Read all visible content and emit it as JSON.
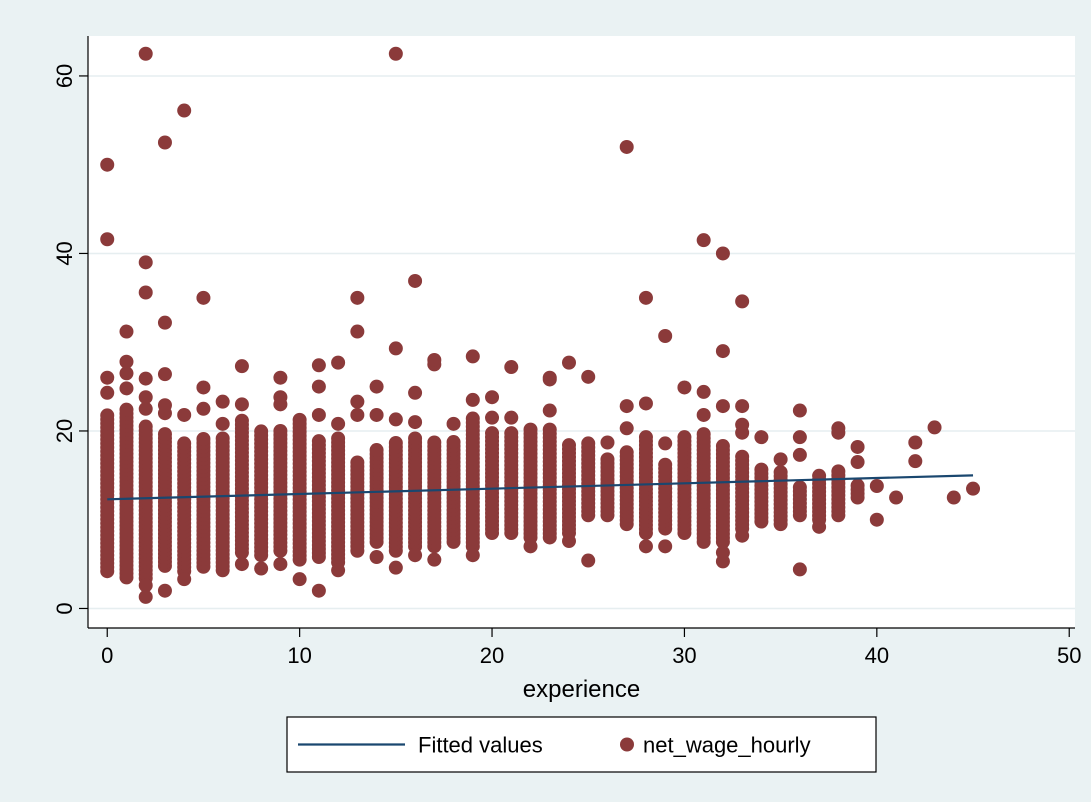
{
  "chart_data": {
    "type": "scatter",
    "xlabel": "experience",
    "ylabel": "",
    "xlim": [
      -1,
      50.3
    ],
    "ylim": [
      -2.2,
      64.5
    ],
    "xticks": [
      0,
      10,
      20,
      30,
      40,
      50
    ],
    "yticks": [
      0,
      20,
      40,
      60
    ],
    "grid": "horizontal",
    "legend_position": "bottom",
    "colors": {
      "background": "#eaf2f3",
      "plot_area": "#ffffff",
      "grid": "#e6eef0",
      "points": "#8b3a3a",
      "line": "#1a476f"
    },
    "series": [
      {
        "name": "Fitted values",
        "kind": "line",
        "x": [
          0,
          45
        ],
        "y": [
          12.3,
          15.0
        ]
      },
      {
        "name": "net_wage_hourly",
        "kind": "scatter",
        "columns": [
          {
            "x": 0,
            "lo": 4.2,
            "hi": 22.0,
            "extra": [
              24.3,
              26.0,
              41.6,
              50.0
            ]
          },
          {
            "x": 1,
            "lo": 3.5,
            "hi": 22.5,
            "extra": [
              24.8,
              26.5,
              27.8,
              31.2
            ]
          },
          {
            "x": 2,
            "lo": 3.4,
            "hi": 20.5,
            "extra": [
              1.3,
              2.6,
              22.5,
              23.8,
              25.9,
              35.6,
              39.0,
              62.5
            ]
          },
          {
            "x": 3,
            "lo": 4.8,
            "hi": 19.8,
            "extra": [
              2.0,
              22.0,
              22.9,
              26.4,
              32.2,
              52.5
            ]
          },
          {
            "x": 4,
            "lo": 4.2,
            "hi": 18.8,
            "extra": [
              3.3,
              21.8,
              56.1
            ]
          },
          {
            "x": 5,
            "lo": 4.7,
            "hi": 19.3,
            "extra": [
              22.5,
              24.9,
              35.0
            ]
          },
          {
            "x": 6,
            "lo": 4.3,
            "hi": 19.5,
            "extra": [
              20.8,
              23.3
            ]
          },
          {
            "x": 7,
            "lo": 6.3,
            "hi": 21.5,
            "extra": [
              5.0,
              23.0,
              27.3
            ]
          },
          {
            "x": 8,
            "lo": 6.0,
            "hi": 20.0,
            "extra": [
              4.5
            ]
          },
          {
            "x": 9,
            "lo": 6.5,
            "hi": 20.3,
            "extra": [
              5.0,
              23.0,
              23.8,
              26.0
            ]
          },
          {
            "x": 10,
            "lo": 5.5,
            "hi": 21.5,
            "extra": [
              3.3
            ]
          },
          {
            "x": 11,
            "lo": 5.8,
            "hi": 19.0,
            "extra": [
              2.0,
              21.8,
              25.0,
              27.4
            ]
          },
          {
            "x": 12,
            "lo": 5.2,
            "hi": 19.5,
            "extra": [
              4.3,
              20.8,
              27.7
            ]
          },
          {
            "x": 13,
            "lo": 7.0,
            "hi": 16.5,
            "extra": [
              6.5,
              21.8,
              23.3,
              31.2,
              35.0
            ]
          },
          {
            "x": 14,
            "lo": 7.5,
            "hi": 18.0,
            "extra": [
              5.8,
              21.8,
              25.0
            ]
          },
          {
            "x": 15,
            "lo": 6.5,
            "hi": 19.0,
            "extra": [
              4.6,
              21.3,
              29.3,
              62.5
            ]
          },
          {
            "x": 16,
            "lo": 7.0,
            "hi": 19.3,
            "extra": [
              6.0,
              21.0,
              24.3,
              36.9
            ]
          },
          {
            "x": 17,
            "lo": 7.0,
            "hi": 19.0,
            "extra": [
              5.5,
              27.5,
              28.0
            ]
          },
          {
            "x": 18,
            "lo": 7.5,
            "hi": 18.8,
            "extra": [
              20.8
            ]
          },
          {
            "x": 19,
            "lo": 7.0,
            "hi": 21.5,
            "extra": [
              6.0,
              23.5,
              28.4
            ]
          },
          {
            "x": 20,
            "lo": 8.5,
            "hi": 20.0,
            "extra": [
              21.5,
              23.8
            ]
          },
          {
            "x": 21,
            "lo": 8.5,
            "hi": 20.0,
            "extra": [
              21.5,
              27.2
            ]
          },
          {
            "x": 22,
            "lo": 8.0,
            "hi": 20.5,
            "extra": [
              7.0
            ]
          },
          {
            "x": 23,
            "lo": 8.0,
            "hi": 20.5,
            "extra": [
              22.3,
              25.8,
              26.0
            ]
          },
          {
            "x": 24,
            "lo": 8.5,
            "hi": 18.5,
            "extra": [
              7.6,
              27.7
            ]
          },
          {
            "x": 25,
            "lo": 10.5,
            "hi": 19.0,
            "extra": [
              5.4,
              26.1
            ]
          },
          {
            "x": 26,
            "lo": 10.5,
            "hi": 17.0,
            "extra": [
              18.7
            ]
          },
          {
            "x": 27,
            "lo": 9.5,
            "hi": 18.0,
            "extra": [
              20.3,
              22.8,
              52.0
            ]
          },
          {
            "x": 28,
            "lo": 8.5,
            "hi": 19.5,
            "extra": [
              7.0,
              23.1,
              35.0
            ]
          },
          {
            "x": 29,
            "lo": 9.0,
            "hi": 16.5,
            "extra": [
              7.0,
              18.6,
              30.7
            ]
          },
          {
            "x": 30,
            "lo": 8.5,
            "hi": 19.5,
            "extra": [
              24.9
            ]
          },
          {
            "x": 31,
            "lo": 7.5,
            "hi": 20.0,
            "extra": [
              21.8,
              24.4,
              41.5
            ]
          },
          {
            "x": 32,
            "lo": 7.5,
            "hi": 18.5,
            "extra": [
              5.3,
              6.3,
              22.8,
              29.0,
              40.0
            ]
          },
          {
            "x": 33,
            "lo": 9.0,
            "hi": 17.5,
            "extra": [
              8.2,
              19.8,
              20.7,
              22.8,
              34.6
            ]
          },
          {
            "x": 34,
            "lo": 9.8,
            "hi": 16.0,
            "extra": [
              19.3
            ]
          },
          {
            "x": 35,
            "lo": 9.5,
            "hi": 15.5,
            "extra": [
              16.8
            ]
          },
          {
            "x": 36,
            "lo": 10.5,
            "hi": 14.0,
            "extra": [
              4.4,
              17.3,
              19.3,
              22.3
            ]
          },
          {
            "x": 37,
            "lo": 10.0,
            "hi": 15.0,
            "extra": [
              9.2
            ]
          },
          {
            "x": 38,
            "lo": 10.5,
            "hi": 15.5,
            "extra": [
              19.8,
              20.3
            ]
          },
          {
            "x": 39,
            "lo": 12.5,
            "hi": 14.0,
            "extra": [
              16.5,
              18.2
            ]
          },
          {
            "x": 40,
            "lo": 13.8,
            "hi": 13.8,
            "extra": [
              10.0
            ]
          },
          {
            "x": 41,
            "lo": 12.5,
            "hi": 12.5,
            "extra": []
          },
          {
            "x": 42,
            "lo": 16.6,
            "hi": 16.6,
            "extra": [
              18.7
            ]
          },
          {
            "x": 43,
            "lo": 20.4,
            "hi": 20.4,
            "extra": []
          },
          {
            "x": 44,
            "lo": 12.5,
            "hi": 12.5,
            "extra": []
          },
          {
            "x": 45,
            "lo": 13.5,
            "hi": 13.5,
            "extra": []
          }
        ]
      }
    ]
  }
}
